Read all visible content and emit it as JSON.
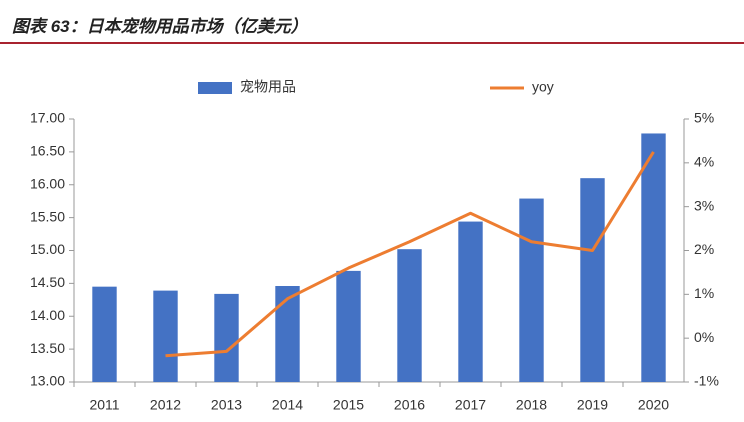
{
  "chart_data": {
    "type": "bar-line",
    "title": "图表 63：日本宠物用品市场（亿美元）",
    "categories": [
      "2011",
      "2012",
      "2013",
      "2014",
      "2015",
      "2016",
      "2017",
      "2018",
      "2019",
      "2020"
    ],
    "series": [
      {
        "name": "宠物用品",
        "type": "bar",
        "color": "#4472c4",
        "values": [
          14.45,
          14.39,
          14.34,
          14.46,
          14.69,
          15.02,
          15.44,
          15.79,
          16.1,
          16.78
        ]
      },
      {
        "name": "yoy",
        "type": "line",
        "axis": "y2",
        "color": "#ed7d31",
        "values": [
          null,
          -0.4,
          -0.3,
          0.9,
          1.6,
          2.2,
          2.85,
          2.2,
          2.0,
          4.25
        ]
      }
    ],
    "ylim": [
      13,
      17
    ],
    "yticks": [
      {
        "value": 13,
        "label": "13.00"
      },
      {
        "value": 13.5,
        "label": "13.50"
      },
      {
        "value": 14,
        "label": "14.00"
      },
      {
        "value": 14.5,
        "label": "14.50"
      },
      {
        "value": 15,
        "label": "15.00"
      },
      {
        "value": 15.5,
        "label": "15.50"
      },
      {
        "value": 16,
        "label": "16.00"
      },
      {
        "value": 16.5,
        "label": "16.50"
      },
      {
        "value": 17,
        "label": "17.00"
      }
    ],
    "y2lim": [
      -1,
      5
    ],
    "y2ticks": [
      {
        "value": -1,
        "label": "-1%"
      },
      {
        "value": 0,
        "label": "0%"
      },
      {
        "value": 1,
        "label": "1%"
      },
      {
        "value": 2,
        "label": "2%"
      },
      {
        "value": 3,
        "label": "3%"
      },
      {
        "value": 4,
        "label": "4%"
      },
      {
        "value": 5,
        "label": "5%"
      }
    ],
    "legend": "top"
  }
}
